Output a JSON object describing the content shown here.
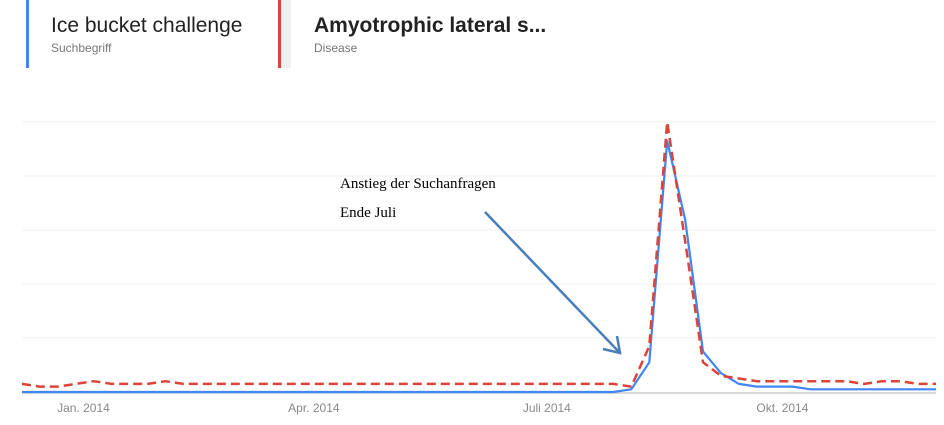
{
  "terms": [
    {
      "name": "Ice bucket challenge",
      "type": "Suchbegriff",
      "color": "#4285f4"
    },
    {
      "name": "Amyotrophic lateral s...",
      "type": "Disease",
      "color": "#db4437"
    }
  ],
  "annotation": {
    "line1": "Anstieg der Suchanfragen",
    "line2": "Ende Juli",
    "arrow_color": "#4a7ebb"
  },
  "chart_data": {
    "type": "line",
    "title": "",
    "xlabel": "",
    "ylabel": "",
    "ylim": [
      0,
      100
    ],
    "grid": true,
    "x_ticks": [
      {
        "label": "Jan. 2014",
        "date": "2014-01-01"
      },
      {
        "label": "Apr. 2014",
        "date": "2014-04-01"
      },
      {
        "label": "Juli 2014",
        "date": "2014-07-01"
      },
      {
        "label": "Okt. 2014",
        "date": "2014-10-01"
      }
    ],
    "x": [
      "2013-12-08",
      "2013-12-15",
      "2013-12-22",
      "2013-12-29",
      "2014-01-05",
      "2014-01-12",
      "2014-01-19",
      "2014-01-26",
      "2014-02-02",
      "2014-02-09",
      "2014-02-16",
      "2014-02-23",
      "2014-03-02",
      "2014-03-09",
      "2014-03-16",
      "2014-03-23",
      "2014-03-30",
      "2014-04-06",
      "2014-04-13",
      "2014-04-20",
      "2014-04-27",
      "2014-05-04",
      "2014-05-11",
      "2014-05-18",
      "2014-05-25",
      "2014-06-01",
      "2014-06-08",
      "2014-06-15",
      "2014-06-22",
      "2014-06-29",
      "2014-07-06",
      "2014-07-13",
      "2014-07-20",
      "2014-07-27",
      "2014-08-03",
      "2014-08-10",
      "2014-08-17",
      "2014-08-24",
      "2014-08-31",
      "2014-09-07",
      "2014-09-14",
      "2014-09-21",
      "2014-09-28",
      "2014-10-05",
      "2014-10-12",
      "2014-10-19",
      "2014-10-26",
      "2014-11-02",
      "2014-11-09",
      "2014-11-16",
      "2014-11-23",
      "2014-11-30"
    ],
    "series": [
      {
        "name": "Ice bucket challenge",
        "style": "solid",
        "color": "#4285f4",
        "values": [
          0,
          0,
          0,
          0,
          0,
          0,
          0,
          0,
          0,
          0,
          0,
          0,
          0,
          0,
          0,
          0,
          0,
          0,
          0,
          0,
          0,
          0,
          0,
          0,
          0,
          0,
          0,
          0,
          0,
          0,
          0,
          0,
          0,
          0,
          1,
          11,
          93,
          64,
          15,
          7,
          3,
          2,
          2,
          2,
          1,
          1,
          1,
          1,
          1,
          1,
          1,
          1
        ]
      },
      {
        "name": "Amyotrophic lateral s...",
        "style": "dashed",
        "color": "#db4437",
        "values": [
          3,
          2,
          2,
          3,
          4,
          3,
          3,
          3,
          4,
          3,
          3,
          3,
          3,
          3,
          3,
          3,
          3,
          3,
          3,
          3,
          3,
          3,
          3,
          3,
          3,
          3,
          3,
          3,
          3,
          3,
          3,
          3,
          3,
          3,
          2,
          17,
          100,
          56,
          11,
          6,
          5,
          4,
          4,
          4,
          4,
          4,
          4,
          3,
          4,
          4,
          3,
          3
        ]
      }
    ]
  }
}
